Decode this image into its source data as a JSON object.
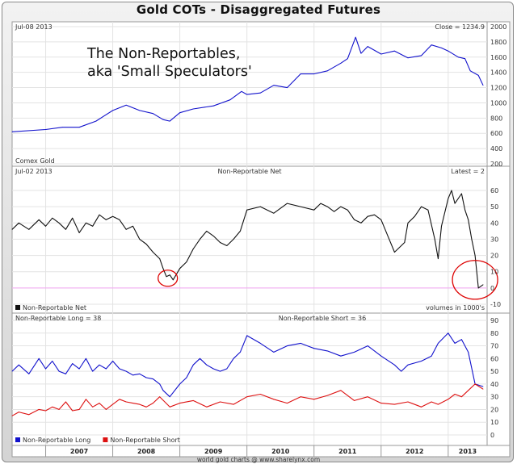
{
  "page_title": "Gold COTs - Disaggregated Futures",
  "chart_data": [
    {
      "type": "line",
      "panel_left": "Jul-08 2013",
      "panel_right": "Close = 1234.9",
      "footer_label": "Comex Gold",
      "annotation": "The Non-Reportables,\naka 'Small Speculators'",
      "ylim": [
        200,
        2000
      ],
      "yticks": [
        200,
        400,
        600,
        800,
        1000,
        1200,
        1400,
        1600,
        1800,
        2000
      ],
      "grid": true,
      "series": [
        {
          "color": "#1111cc",
          "x": [
            2006.5,
            2007.0,
            2007.25,
            2007.5,
            2007.75,
            2008.0,
            2008.2,
            2008.4,
            2008.6,
            2008.75,
            2008.85,
            2009.0,
            2009.2,
            2009.5,
            2009.75,
            2009.92,
            2010.0,
            2010.2,
            2010.4,
            2010.6,
            2010.8,
            2011.0,
            2011.2,
            2011.4,
            2011.5,
            2011.62,
            2011.7,
            2011.8,
            2012.0,
            2012.2,
            2012.4,
            2012.6,
            2012.75,
            2012.9,
            2013.0,
            2013.15,
            2013.25,
            2013.33,
            2013.45,
            2013.52
          ],
          "values": [
            620,
            650,
            680,
            680,
            760,
            900,
            970,
            900,
            860,
            780,
            760,
            870,
            920,
            960,
            1040,
            1150,
            1110,
            1130,
            1230,
            1200,
            1380,
            1380,
            1420,
            1520,
            1580,
            1860,
            1650,
            1740,
            1640,
            1680,
            1590,
            1620,
            1760,
            1720,
            1680,
            1600,
            1580,
            1420,
            1360,
            1230
          ]
        }
      ]
    },
    {
      "type": "line",
      "panel_left": "Jul-02 2013",
      "panel_center": "Non-Reportable Net",
      "panel_right": "Latest = 2",
      "footer_label": "volumes in 1000's",
      "ylim": [
        -10,
        60
      ],
      "yticks": [
        -10,
        0,
        10,
        20,
        30,
        40,
        50,
        60
      ],
      "grid": true,
      "legend": "bottom-left",
      "series": [
        {
          "name": "Non-Reportable Net",
          "color": "#111111",
          "x": [
            2006.5,
            2006.6,
            2006.75,
            2006.9,
            2007.0,
            2007.1,
            2007.2,
            2007.3,
            2007.4,
            2007.5,
            2007.6,
            2007.7,
            2007.8,
            2007.9,
            2008.0,
            2008.1,
            2008.2,
            2008.3,
            2008.4,
            2008.5,
            2008.6,
            2008.7,
            2008.75,
            2008.8,
            2008.85,
            2008.9,
            2009.0,
            2009.1,
            2009.2,
            2009.3,
            2009.4,
            2009.5,
            2009.6,
            2009.7,
            2009.8,
            2009.9,
            2010.0,
            2010.2,
            2010.4,
            2010.6,
            2010.8,
            2011.0,
            2011.1,
            2011.2,
            2011.3,
            2011.4,
            2011.5,
            2011.6,
            2011.7,
            2011.8,
            2011.9,
            2012.0,
            2012.1,
            2012.2,
            2012.3,
            2012.35,
            2012.4,
            2012.5,
            2012.6,
            2012.7,
            2012.8,
            2012.85,
            2012.9,
            2013.0,
            2013.05,
            2013.1,
            2013.2,
            2013.25,
            2013.3,
            2013.35,
            2013.4,
            2013.45,
            2013.52
          ],
          "values": [
            36,
            40,
            36,
            42,
            38,
            43,
            40,
            36,
            43,
            34,
            40,
            38,
            45,
            42,
            44,
            42,
            36,
            38,
            30,
            27,
            22,
            18,
            12,
            7,
            8,
            5,
            12,
            16,
            24,
            30,
            35,
            32,
            28,
            26,
            30,
            35,
            48,
            50,
            46,
            52,
            50,
            48,
            52,
            50,
            47,
            50,
            48,
            42,
            40,
            44,
            45,
            42,
            32,
            22,
            26,
            28,
            40,
            44,
            50,
            48,
            30,
            18,
            38,
            55,
            60,
            52,
            58,
            48,
            42,
            30,
            20,
            0,
            2
          ]
        }
      ],
      "circles": [
        {
          "x": 2008.82,
          "y": 6
        },
        {
          "x": 2013.4,
          "y": 5
        }
      ]
    },
    {
      "type": "line",
      "panel_left": "Non-Reportable Long = 38",
      "panel_center": "Non-Reportable Short = 36",
      "ylim": [
        0,
        90
      ],
      "yticks": [
        0,
        10,
        20,
        30,
        40,
        50,
        60,
        70,
        80,
        90
      ],
      "grid": true,
      "legend": "bottom-left",
      "xlim": [
        2006.5,
        2013.58
      ],
      "xticks": [
        "2007",
        "2008",
        "2009",
        "2010",
        "2011",
        "2012",
        "2013"
      ],
      "series": [
        {
          "name": "Non-Reportable Long",
          "color": "#1111cc",
          "x": [
            2006.5,
            2006.6,
            2006.75,
            2006.9,
            2007.0,
            2007.1,
            2007.2,
            2007.3,
            2007.4,
            2007.5,
            2007.6,
            2007.7,
            2007.8,
            2007.9,
            2008.0,
            2008.1,
            2008.2,
            2008.3,
            2008.4,
            2008.5,
            2008.6,
            2008.7,
            2008.75,
            2008.85,
            2009.0,
            2009.1,
            2009.2,
            2009.3,
            2009.4,
            2009.5,
            2009.6,
            2009.7,
            2009.8,
            2009.9,
            2010.0,
            2010.2,
            2010.4,
            2010.6,
            2010.8,
            2011.0,
            2011.2,
            2011.4,
            2011.6,
            2011.8,
            2012.0,
            2012.2,
            2012.3,
            2012.4,
            2012.6,
            2012.75,
            2012.85,
            2013.0,
            2013.1,
            2013.2,
            2013.3,
            2013.4,
            2013.52
          ],
          "values": [
            50,
            55,
            48,
            60,
            52,
            58,
            50,
            48,
            56,
            52,
            60,
            50,
            55,
            52,
            58,
            52,
            50,
            47,
            48,
            45,
            44,
            40,
            35,
            30,
            40,
            45,
            55,
            60,
            55,
            52,
            50,
            52,
            60,
            65,
            78,
            72,
            65,
            70,
            72,
            68,
            66,
            62,
            65,
            70,
            62,
            55,
            50,
            55,
            58,
            62,
            72,
            80,
            72,
            75,
            65,
            40,
            38
          ]
        },
        {
          "name": "Non-Reportable Short",
          "color": "#dd1111",
          "x": [
            2006.5,
            2006.6,
            2006.75,
            2006.9,
            2007.0,
            2007.1,
            2007.2,
            2007.3,
            2007.4,
            2007.5,
            2007.6,
            2007.7,
            2007.8,
            2007.9,
            2008.0,
            2008.1,
            2008.2,
            2008.3,
            2008.4,
            2008.5,
            2008.6,
            2008.7,
            2008.85,
            2009.0,
            2009.2,
            2009.4,
            2009.6,
            2009.8,
            2010.0,
            2010.2,
            2010.4,
            2010.6,
            2010.8,
            2011.0,
            2011.2,
            2011.4,
            2011.6,
            2011.8,
            2012.0,
            2012.2,
            2012.4,
            2012.6,
            2012.75,
            2012.85,
            2013.0,
            2013.1,
            2013.2,
            2013.3,
            2013.4,
            2013.52
          ],
          "values": [
            15,
            18,
            16,
            20,
            19,
            22,
            20,
            26,
            19,
            20,
            28,
            22,
            25,
            20,
            24,
            28,
            26,
            25,
            24,
            22,
            25,
            30,
            22,
            25,
            27,
            22,
            26,
            24,
            30,
            32,
            28,
            25,
            30,
            28,
            31,
            35,
            27,
            30,
            25,
            24,
            26,
            22,
            26,
            24,
            28,
            32,
            30,
            35,
            40,
            36
          ]
        }
      ]
    }
  ],
  "source_credit": "world gold charts @ www.sharelynx.com"
}
